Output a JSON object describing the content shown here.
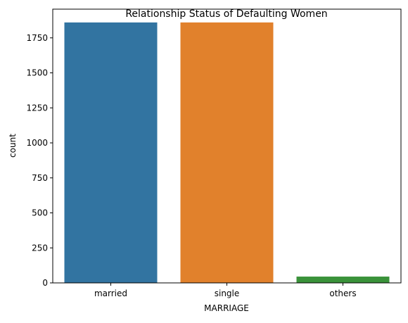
{
  "chart_data": {
    "type": "bar",
    "title": "Relationship Status of Defaulting Women",
    "xlabel": "MARRIAGE",
    "ylabel": "count",
    "categories": [
      "married",
      "single",
      "others"
    ],
    "values": [
      1860,
      1860,
      45
    ],
    "colors": [
      "#3274a1",
      "#e1812c",
      "#3a923a"
    ],
    "ylim": [
      0,
      1955
    ],
    "yticks": [
      0,
      250,
      500,
      750,
      1000,
      1250,
      1500,
      1750
    ],
    "grid": false,
    "legend": "none"
  }
}
